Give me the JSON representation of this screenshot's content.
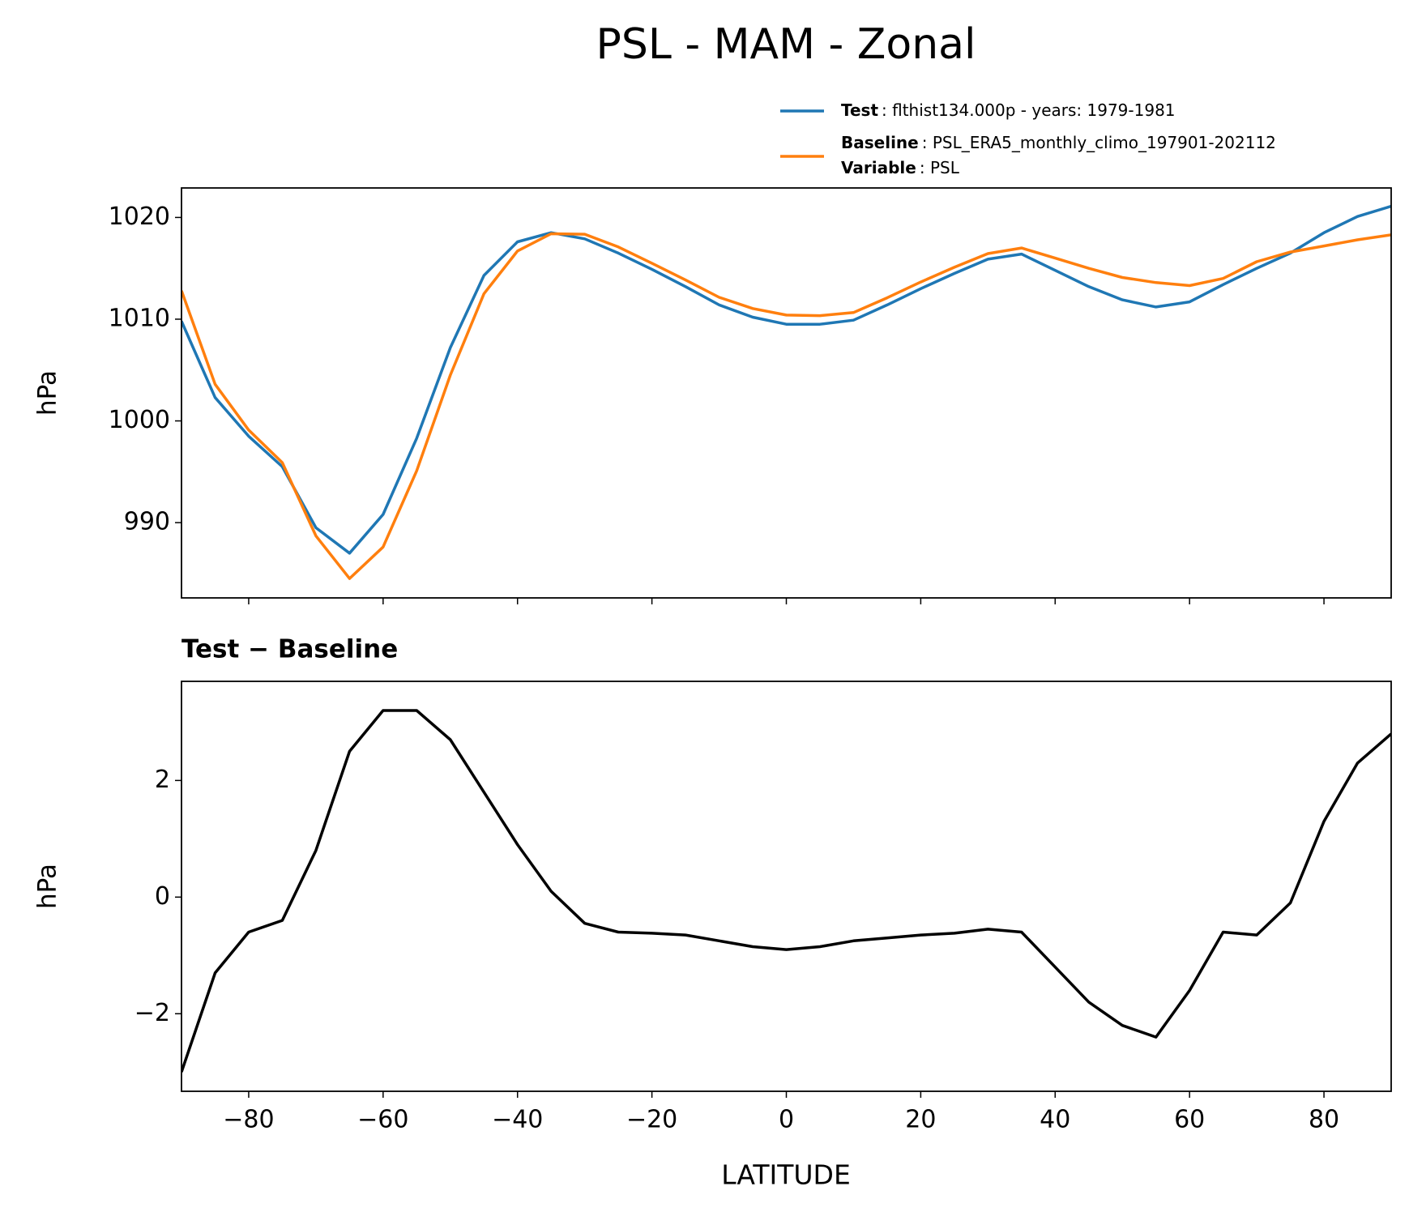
{
  "chart_data": [
    {
      "type": "line",
      "title": "PSL - MAM - Zonal",
      "ylabel": "hPa",
      "x": [
        -90,
        -85,
        -80,
        -75,
        -70,
        -65,
        -60,
        -55,
        -50,
        -45,
        -40,
        -35,
        -30,
        -25,
        -20,
        -15,
        -10,
        -5,
        0,
        5,
        10,
        15,
        20,
        25,
        30,
        35,
        40,
        45,
        50,
        55,
        60,
        65,
        70,
        75,
        80,
        85,
        90
      ],
      "series": [
        {
          "name": "Test",
          "description": ": flthist134.000p - years: 1979-1981",
          "color": "#1f77b4",
          "values": [
            1009.8,
            1002.3,
            998.5,
            995.5,
            989.5,
            987.0,
            990.8,
            998.3,
            1007.2,
            1014.3,
            1017.6,
            1018.5,
            1017.9,
            1016.5,
            1014.9,
            1013.2,
            1011.4,
            1010.2,
            1009.5,
            1009.5,
            1009.9,
            1011.4,
            1013.0,
            1014.5,
            1015.9,
            1016.4,
            1014.8,
            1013.2,
            1011.9,
            1011.2,
            1011.7,
            1013.4,
            1015.0,
            1016.5,
            1018.5,
            1020.1,
            1021.1
          ]
        },
        {
          "name": "Baseline",
          "description": ": PSL_ERA5_monthly_climo_197901-202112",
          "color": "#ff7f0e",
          "values": [
            1012.8,
            1003.6,
            999.1,
            995.9,
            988.7,
            984.5,
            987.6,
            995.1,
            1004.5,
            1012.5,
            1016.7,
            1018.4,
            1018.35,
            1017.1,
            1015.5,
            1013.85,
            1012.15,
            1011.05,
            1010.4,
            1010.35,
            1010.65,
            1012.1,
            1013.65,
            1015.1,
            1016.45,
            1017.0,
            1016.0,
            1015.0,
            1014.1,
            1013.6,
            1013.3,
            1014.0,
            1015.65,
            1016.6,
            1017.2,
            1017.8,
            1018.3
          ]
        }
      ],
      "legend_extra": {
        "name": "Variable",
        "description": ": PSL"
      },
      "xlim": [
        -90,
        90
      ],
      "xticks": [
        -80,
        -60,
        -40,
        -20,
        0,
        20,
        40,
        60,
        80
      ],
      "ylim": [
        982.6,
        1022.9
      ],
      "yticks": [
        990,
        1000,
        1010,
        1020
      ]
    },
    {
      "type": "line",
      "title": "Test − Baseline",
      "ylabel": "hPa",
      "xlabel": "LATITUDE",
      "x": [
        -90,
        -85,
        -80,
        -75,
        -70,
        -65,
        -60,
        -55,
        -50,
        -45,
        -40,
        -35,
        -30,
        -25,
        -20,
        -15,
        -10,
        -5,
        0,
        5,
        10,
        15,
        20,
        25,
        30,
        35,
        40,
        45,
        50,
        55,
        60,
        65,
        70,
        75,
        80,
        85,
        90
      ],
      "series": [
        {
          "color": "#000000",
          "values": [
            -3.0,
            -1.3,
            -0.6,
            -0.4,
            0.8,
            2.5,
            3.2,
            3.2,
            2.7,
            1.8,
            0.9,
            0.1,
            -0.45,
            -0.6,
            -0.62,
            -0.65,
            -0.75,
            -0.85,
            -0.9,
            -0.85,
            -0.75,
            -0.7,
            -0.65,
            -0.62,
            -0.55,
            -0.6,
            -1.2,
            -1.8,
            -2.2,
            -2.4,
            -1.6,
            -0.6,
            -0.65,
            -0.1,
            1.3,
            2.3,
            2.8
          ]
        }
      ],
      "xlim": [
        -90,
        90
      ],
      "xticks": [
        {
          "value": -80,
          "label": "−80"
        },
        {
          "value": -60,
          "label": "−60"
        },
        {
          "value": -40,
          "label": "−40"
        },
        {
          "value": -20,
          "label": "−20"
        },
        0,
        20,
        40,
        60,
        80
      ],
      "ylim": [
        -3.33,
        3.7
      ],
      "yticks": [
        {
          "value": -2,
          "label": "−2"
        },
        0,
        2
      ]
    }
  ]
}
